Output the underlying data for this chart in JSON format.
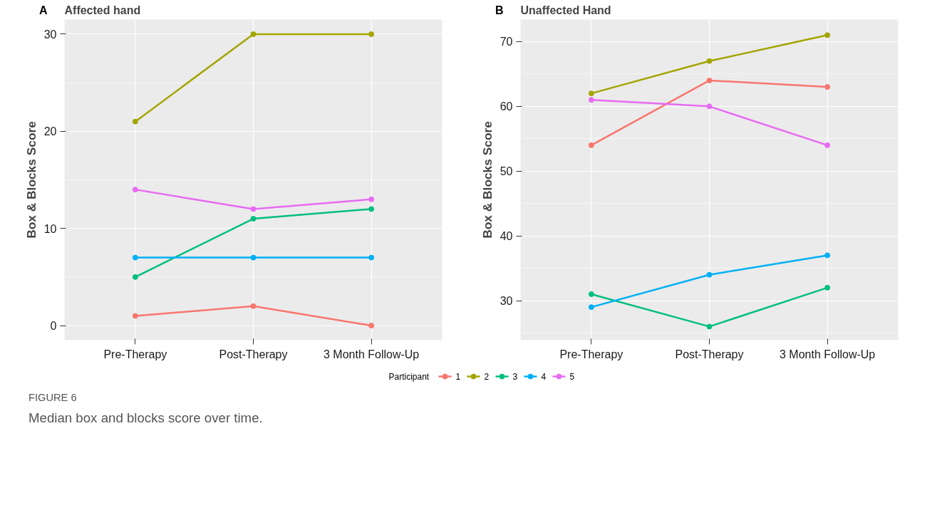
{
  "chart_data": [
    {
      "type": "line",
      "title": "Affected hand",
      "ylabel": "Box & Blocks Score",
      "legend_title": "Participant",
      "legend": "bottom",
      "annotations": [
        "A"
      ],
      "categories": [
        "Pre-Therapy",
        "Post-Therapy",
        "3 Month Follow-Up"
      ],
      "ylim": [
        -1.5,
        31.5
      ],
      "yticks": [
        0,
        10,
        20,
        30
      ],
      "grid": true,
      "marker": "circle",
      "line_style": "solid",
      "series": [
        {
          "name": "1",
          "color": "#f8766d",
          "values": [
            1,
            2,
            0
          ]
        },
        {
          "name": "2",
          "color": "#a3a500",
          "values": [
            21,
            30,
            30
          ]
        },
        {
          "name": "3",
          "color": "#00bf7d",
          "values": [
            5,
            11,
            12
          ]
        },
        {
          "name": "4",
          "color": "#00b0f6",
          "values": [
            7,
            7,
            7
          ]
        },
        {
          "name": "5",
          "color": "#e76bf3",
          "values": [
            14,
            12,
            13
          ]
        }
      ]
    },
    {
      "type": "line",
      "title": "Unaffected Hand",
      "ylabel": "Box & Blocks Score",
      "annotations": [
        "B",
        "FIGURE 6",
        "Median box and blocks score over time."
      ],
      "categories": [
        "Pre-Therapy",
        "Post-Therapy",
        "3 Month Follow-Up"
      ],
      "ylim": [
        23.9,
        73.4
      ],
      "yticks": [
        30,
        40,
        50,
        60,
        70
      ],
      "grid": true,
      "marker": "circle",
      "line_style": "solid",
      "series": [
        {
          "color": "#f8766d",
          "values": [
            54,
            64,
            63
          ]
        },
        {
          "color": "#a3a500",
          "values": [
            62,
            67,
            71
          ]
        },
        {
          "color": "#00bf7d",
          "values": [
            31,
            26,
            32
          ]
        },
        {
          "color": "#00b0f6",
          "values": [
            29,
            34,
            37
          ]
        },
        {
          "color": "#e76bf3",
          "values": [
            61,
            60,
            54
          ]
        }
      ]
    }
  ]
}
